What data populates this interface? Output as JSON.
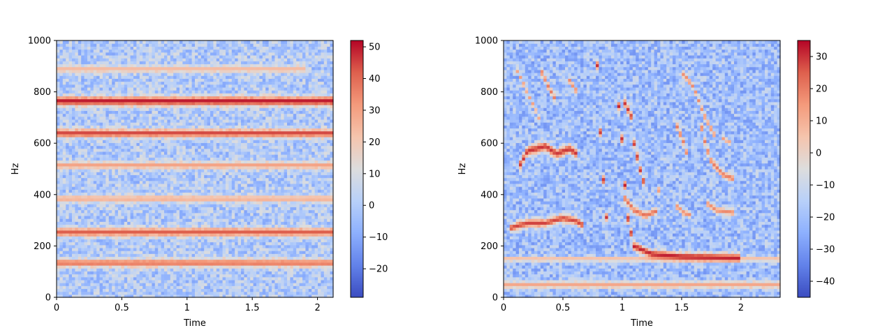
{
  "chart_data": [
    {
      "type": "heatmap",
      "title": "",
      "xlabel": "Time",
      "ylabel": "Hz",
      "xlim": [
        0,
        2.12
      ],
      "ylim": [
        0,
        1000
      ],
      "xticks": [
        0,
        0.5,
        1,
        1.5,
        2
      ],
      "xtick_labels": [
        "0",
        "0.5",
        "1",
        "1.5",
        "2"
      ],
      "yticks": [
        0,
        200,
        400,
        600,
        800,
        1000
      ],
      "ytick_labels": [
        "0",
        "200",
        "400",
        "600",
        "800",
        "1000"
      ],
      "colormap": "coolwarm",
      "colorbar": {
        "range": [
          -29,
          52
        ],
        "ticks": [
          -20,
          -10,
          0,
          10,
          20,
          30,
          40,
          50
        ],
        "tick_labels": [
          "−20",
          "−10",
          "0",
          "10",
          "20",
          "30",
          "40",
          "50"
        ]
      },
      "grid": false,
      "background_level": 0,
      "bands": [
        {
          "freq": 135,
          "level": 38,
          "width": 16
        },
        {
          "freq": 255,
          "level": 42,
          "width": 16
        },
        {
          "freq": 385,
          "level": 27,
          "width": 14
        },
        {
          "freq": 515,
          "level": 30,
          "width": 14
        },
        {
          "freq": 640,
          "level": 45,
          "width": 16
        },
        {
          "freq": 765,
          "level": 50,
          "width": 18
        },
        {
          "freq": 890,
          "level": 24,
          "width": 14,
          "t_end": 1.9
        }
      ]
    },
    {
      "type": "heatmap",
      "title": "",
      "xlabel": "Time",
      "ylabel": "Hz",
      "xlim": [
        0,
        2.33
      ],
      "ylim": [
        0,
        1000
      ],
      "xticks": [
        0,
        0.5,
        1,
        1.5,
        2
      ],
      "xtick_labels": [
        "0",
        "0.5",
        "1",
        "1.5",
        "2"
      ],
      "yticks": [
        0,
        200,
        400,
        600,
        800,
        1000
      ],
      "ytick_labels": [
        "0",
        "200",
        "400",
        "600",
        "800",
        "1000"
      ],
      "colormap": "coolwarm",
      "colorbar": {
        "range": [
          -45,
          35
        ],
        "ticks": [
          -40,
          -30,
          -20,
          -10,
          0,
          10,
          20,
          30
        ],
        "tick_labels": [
          "−40",
          "−30",
          "−20",
          "−10",
          "0",
          "10",
          "20",
          "30"
        ]
      },
      "grid": false,
      "background_level": -20,
      "bands": [
        {
          "freq": 50,
          "level": 12,
          "width": 14
        },
        {
          "freq": 150,
          "level": 8,
          "width": 10
        }
      ],
      "curves": [
        {
          "level": 30,
          "width": 18,
          "points": [
            [
              0.12,
              500
            ],
            [
              0.2,
              570
            ],
            [
              0.35,
              590
            ],
            [
              0.45,
              560
            ],
            [
              0.55,
              580
            ],
            [
              0.62,
              560
            ]
          ]
        },
        {
          "level": 28,
          "width": 16,
          "points": [
            [
              0.05,
              270
            ],
            [
              0.2,
              290
            ],
            [
              0.35,
              290
            ],
            [
              0.5,
              310
            ],
            [
              0.6,
              300
            ],
            [
              0.68,
              280
            ]
          ]
        },
        {
          "level": 20,
          "width": 14,
          "points": [
            [
              0.3,
              900
            ],
            [
              0.38,
              820
            ],
            [
              0.45,
              760
            ]
          ]
        },
        {
          "level": 18,
          "width": 12,
          "points": [
            [
              0.55,
              850
            ],
            [
              0.62,
              800
            ]
          ]
        },
        {
          "level": 30,
          "width": 16,
          "points": [
            [
              0.78,
              1000
            ],
            [
              0.8,
              800
            ],
            [
              0.82,
              600
            ],
            [
              0.85,
              400
            ],
            [
              0.88,
              250
            ]
          ]
        },
        {
          "level": 32,
          "width": 16,
          "points": [
            [
              0.95,
              1000
            ],
            [
              0.97,
              750
            ],
            [
              1.0,
              600
            ],
            [
              1.02,
              450
            ],
            [
              1.05,
              300
            ],
            [
              1.1,
              200
            ],
            [
              1.25,
              170
            ],
            [
              1.5,
              160
            ],
            [
              2.0,
              155
            ]
          ]
        },
        {
          "level": 30,
          "width": 16,
          "points": [
            [
              1.0,
              780
            ],
            [
              1.08,
              700
            ],
            [
              1.1,
              600
            ],
            [
              1.15,
              500
            ],
            [
              1.2,
              420
            ]
          ]
        },
        {
          "level": 22,
          "width": 14,
          "points": [
            [
              1.0,
              400
            ],
            [
              1.1,
              340
            ],
            [
              1.2,
              320
            ],
            [
              1.3,
              340
            ]
          ]
        },
        {
          "level": 18,
          "width": 12,
          "points": [
            [
              1.3,
              520
            ],
            [
              1.28,
              460
            ],
            [
              1.32,
              400
            ]
          ]
        },
        {
          "level": 20,
          "width": 14,
          "points": [
            [
              1.45,
              680
            ],
            [
              1.52,
              600
            ],
            [
              1.58,
              500
            ],
            [
              1.55,
              420
            ]
          ]
        },
        {
          "level": 18,
          "width": 12,
          "points": [
            [
              1.45,
              360
            ],
            [
              1.52,
              330
            ],
            [
              1.58,
              320
            ]
          ]
        },
        {
          "level": 18,
          "width": 12,
          "points": [
            [
              1.5,
              880
            ],
            [
              1.6,
              820
            ],
            [
              1.7,
              700
            ],
            [
              1.78,
              630
            ]
          ]
        },
        {
          "level": 20,
          "width": 14,
          "points": [
            [
              1.65,
              700
            ],
            [
              1.7,
              600
            ],
            [
              1.75,
              530
            ],
            [
              1.85,
              480
            ],
            [
              1.95,
              460
            ]
          ]
        },
        {
          "level": 18,
          "width": 12,
          "points": [
            [
              1.7,
              370
            ],
            [
              1.8,
              340
            ],
            [
              1.95,
              330
            ]
          ]
        },
        {
          "level": 14,
          "width": 10,
          "points": [
            [
              1.85,
              620
            ],
            [
              1.92,
              600
            ]
          ]
        },
        {
          "level": 14,
          "width": 10,
          "points": [
            [
              0.1,
              900
            ],
            [
              0.2,
              800
            ],
            [
              0.3,
              700
            ]
          ]
        }
      ]
    }
  ]
}
